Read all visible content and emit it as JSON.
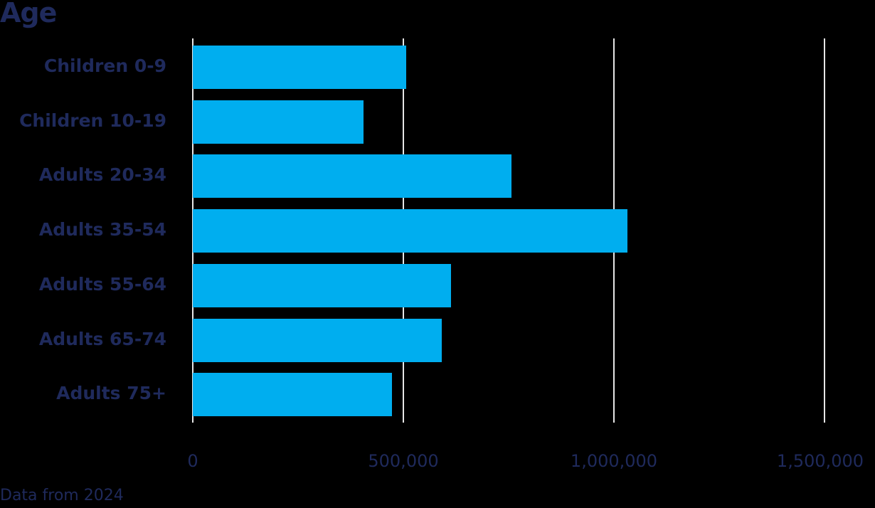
{
  "chart_data": {
    "type": "bar",
    "orientation": "horizontal",
    "title": "Age",
    "categories": [
      "Children 0-9",
      "Children 10-19",
      "Adults 20-34",
      "Adults 35-54",
      "Adults 55-64",
      "Adults 65-74",
      "Adults 75+"
    ],
    "values": [
      507000,
      405000,
      757000,
      1032000,
      613000,
      591000,
      473000
    ],
    "xlabel": "",
    "ylabel": "",
    "xlim": [
      0,
      1500000
    ],
    "x_ticks": [
      "0",
      "500,000",
      "1,000,000",
      "1,500,000"
    ],
    "grid": true,
    "legend": null,
    "bar_color": "#00aeef",
    "annotation": "Data from 2024"
  },
  "colors": {
    "background": "#000000",
    "text": "#1f2a5c",
    "bar": "#00aeef",
    "grid": "#e6e6e6"
  }
}
